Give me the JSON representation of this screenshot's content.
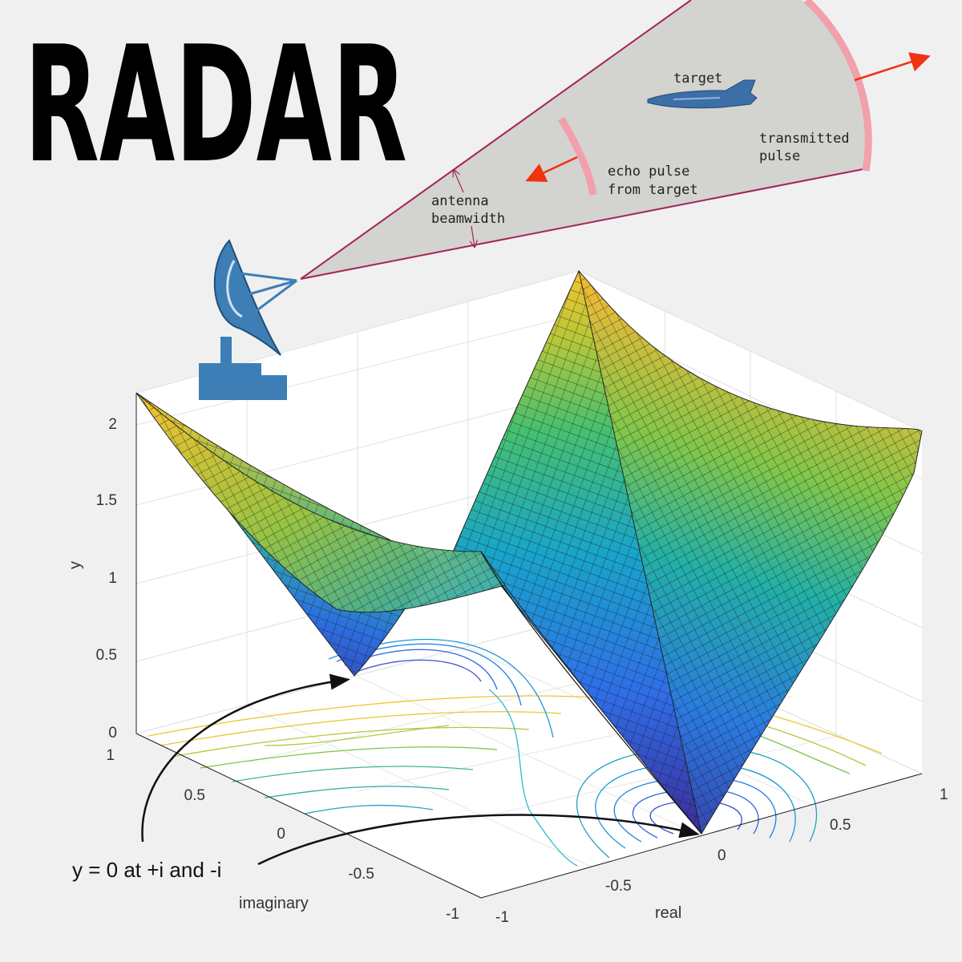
{
  "title": "RADAR",
  "radar_diagram": {
    "target_label": "target",
    "transmitted_label": [
      "transmitted",
      "pulse"
    ],
    "echo_label": [
      "echo pulse",
      "from target"
    ],
    "beam_label": [
      "antenna",
      "beamwidth"
    ]
  },
  "plot": {
    "z_axis_label": "y",
    "z_ticks": [
      "0",
      "0.5",
      "1",
      "1.5",
      "2"
    ],
    "imag_axis_label": "imaginary",
    "imag_ticks": [
      "1",
      "0.5",
      "0",
      "-0.5",
      "-1"
    ],
    "real_axis_label": "real",
    "real_ticks": [
      "-1",
      "-0.5",
      "0",
      "0.5",
      "1"
    ],
    "annotation": "y = 0 at +i and -i"
  },
  "colors": {
    "beam_fill": "#d3d3cf",
    "beam_edge": "#a3245a",
    "pulse": "#f2a0ab",
    "arrow": "#ee3311",
    "dish": "#3d7eb6"
  }
}
